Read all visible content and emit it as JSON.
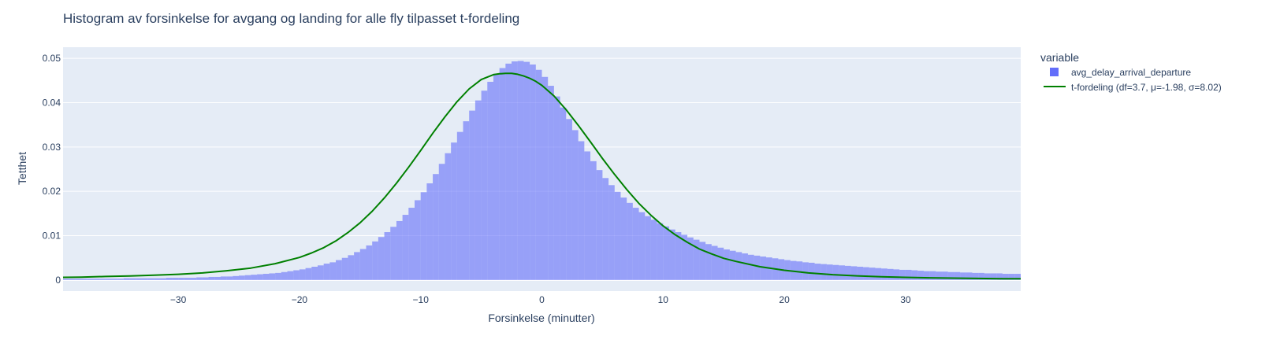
{
  "chart_data": {
    "type": "bar",
    "title": "Histogram av forsinkelse for avgang og landing for alle fly tilpasset t-fordeling",
    "xlabel": "Forsinkelse (minutter)",
    "ylabel": "Tetthet",
    "xlim": [
      -39.5,
      39.5
    ],
    "ylim": [
      -0.0025,
      0.0525
    ],
    "x_ticks": [
      -30,
      -20,
      -10,
      0,
      10,
      20,
      30
    ],
    "x_tick_labels": [
      "−30",
      "−20",
      "−10",
      "0",
      "10",
      "20",
      "30"
    ],
    "y_ticks": [
      0,
      0.01,
      0.02,
      0.03,
      0.04,
      0.05
    ],
    "y_tick_labels": [
      "0",
      "0.01",
      "0.02",
      "0.03",
      "0.04",
      "0.05"
    ],
    "grid": true,
    "legend": {
      "title": "variable",
      "position": "right",
      "entries": [
        {
          "label": "avg_delay_arrival_departure",
          "symbol": "square",
          "color": "#636efa"
        },
        {
          "label": "t-fordeling (df=3.7, μ=-1.98, σ=8.02)",
          "symbol": "line",
          "color": "#008000"
        }
      ]
    },
    "colors": {
      "plot_background": "#e5ecf6",
      "histogram": "#636efa",
      "t_curve": "#008000",
      "text": "#2a3f5f"
    },
    "histogram": {
      "name": "avg_delay_arrival_departure",
      "bin_width": 0.5,
      "opacity": 0.6,
      "bin_starts": [
        -39.5,
        -39,
        -38.5,
        -38,
        -37.5,
        -37,
        -36.5,
        -36,
        -35.5,
        -35,
        -34.5,
        -34,
        -33.5,
        -33,
        -32.5,
        -32,
        -31.5,
        -31,
        -30.5,
        -30,
        -29.5,
        -29,
        -28.5,
        -28,
        -27.5,
        -27,
        -26.5,
        -26,
        -25.5,
        -25,
        -24.5,
        -24,
        -23.5,
        -23,
        -22.5,
        -22,
        -21.5,
        -21,
        -20.5,
        -20,
        -19.5,
        -19,
        -18.5,
        -18,
        -17.5,
        -17,
        -16.5,
        -16,
        -15.5,
        -15,
        -14.5,
        -14,
        -13.5,
        -13,
        -12.5,
        -12,
        -11.5,
        -11,
        -10.5,
        -10,
        -9.5,
        -9,
        -8.5,
        -8,
        -7.5,
        -7,
        -6.5,
        -6,
        -5.5,
        -5,
        -4.5,
        -4,
        -3.5,
        -3,
        -2.5,
        -2,
        -1.5,
        -1,
        -0.5,
        0,
        0.5,
        1,
        1.5,
        2,
        2.5,
        3,
        3.5,
        4,
        4.5,
        5,
        5.5,
        6,
        6.5,
        7,
        7.5,
        8,
        8.5,
        9,
        9.5,
        10,
        10.5,
        11,
        11.5,
        12,
        12.5,
        13,
        13.5,
        14,
        14.5,
        15,
        15.5,
        16,
        16.5,
        17,
        17.5,
        18,
        18.5,
        19,
        19.5,
        20,
        20.5,
        21,
        21.5,
        22,
        22.5,
        23,
        23.5,
        24,
        24.5,
        25,
        25.5,
        26,
        26.5,
        27,
        27.5,
        28,
        28.5,
        29,
        29.5,
        30,
        30.5,
        31,
        31.5,
        32,
        32.5,
        33,
        33.5,
        34,
        34.5,
        35,
        35.5,
        36,
        36.5,
        37,
        37.5,
        38,
        38.5,
        39
      ],
      "densities": [
        0.0003,
        0.0003,
        0.0003,
        0.0003,
        0.0003,
        0.0003,
        0.0003,
        0.0003,
        0.0003,
        0.0003,
        0.0004,
        0.0004,
        0.0004,
        0.0004,
        0.0004,
        0.0004,
        0.0004,
        0.0005,
        0.0005,
        0.0005,
        0.0005,
        0.0005,
        0.0006,
        0.0006,
        0.0007,
        0.0007,
        0.0008,
        0.0008,
        0.0009,
        0.001,
        0.0011,
        0.0012,
        0.0013,
        0.0014,
        0.0015,
        0.0016,
        0.0018,
        0.002,
        0.0022,
        0.0024,
        0.0027,
        0.003,
        0.0033,
        0.0037,
        0.004,
        0.0045,
        0.005,
        0.0056,
        0.0063,
        0.007,
        0.0078,
        0.0087,
        0.0097,
        0.0108,
        0.012,
        0.0133,
        0.0147,
        0.0163,
        0.018,
        0.0198,
        0.0218,
        0.0239,
        0.0262,
        0.0286,
        0.031,
        0.0334,
        0.0358,
        0.0382,
        0.0405,
        0.0427,
        0.0447,
        0.0465,
        0.0478,
        0.0488,
        0.0493,
        0.0494,
        0.0492,
        0.0486,
        0.0474,
        0.0458,
        0.0438,
        0.0414,
        0.0389,
        0.0363,
        0.0338,
        0.0313,
        0.029,
        0.0268,
        0.0248,
        0.023,
        0.0214,
        0.0199,
        0.0186,
        0.0174,
        0.0163,
        0.0153,
        0.0144,
        0.0136,
        0.0128,
        0.0121,
        0.0114,
        0.0108,
        0.0102,
        0.0096,
        0.0091,
        0.0086,
        0.0081,
        0.0077,
        0.0073,
        0.0069,
        0.0066,
        0.0063,
        0.006,
        0.0057,
        0.0055,
        0.0053,
        0.0051,
        0.0049,
        0.0047,
        0.0045,
        0.0043,
        0.0042,
        0.004,
        0.0039,
        0.0037,
        0.0036,
        0.0035,
        0.0034,
        0.0033,
        0.0032,
        0.0031,
        0.003,
        0.0029,
        0.0028,
        0.0027,
        0.0026,
        0.0025,
        0.0024,
        0.0023,
        0.0023,
        0.0022,
        0.0021,
        0.002,
        0.002,
        0.0019,
        0.0019,
        0.0018,
        0.0018,
        0.0017,
        0.0017,
        0.0016,
        0.0016,
        0.0015,
        0.0015,
        0.0015,
        0.0014,
        0.0014,
        0.0014,
        0.0013,
        0.0013,
        0.0013,
        0.0012
      ]
    },
    "t_curve": {
      "name": "t-fordeling (df=3.7, μ=-1.98, σ=8.02)",
      "x": [
        -39.5,
        -38,
        -36,
        -34,
        -32,
        -30,
        -28,
        -26,
        -24,
        -22,
        -20,
        -19,
        -18,
        -17,
        -16,
        -15,
        -14,
        -13,
        -12,
        -11,
        -10,
        -9,
        -8,
        -7,
        -6,
        -5,
        -4,
        -3.5,
        -3,
        -2.5,
        -2,
        -1.5,
        -1,
        -0.5,
        0,
        1,
        2,
        3,
        4,
        5,
        6,
        7,
        8,
        9,
        10,
        11,
        12,
        13,
        14,
        15,
        16,
        18,
        20,
        22,
        24,
        26,
        28,
        30,
        32,
        34,
        36,
        38,
        39.5
      ],
      "y": [
        0.0006,
        0.00065,
        0.0008,
        0.0009,
        0.0011,
        0.0013,
        0.0016,
        0.0021,
        0.0027,
        0.0037,
        0.0051,
        0.0061,
        0.0073,
        0.0088,
        0.0107,
        0.0129,
        0.0155,
        0.0185,
        0.0218,
        0.0254,
        0.0292,
        0.0331,
        0.0368,
        0.0402,
        0.0431,
        0.0452,
        0.0463,
        0.0465,
        0.0466,
        0.0466,
        0.0464,
        0.046,
        0.0455,
        0.0448,
        0.0439,
        0.0415,
        0.0384,
        0.0349,
        0.0312,
        0.0274,
        0.0238,
        0.0204,
        0.0173,
        0.0146,
        0.0122,
        0.0102,
        0.0085,
        0.007,
        0.0059,
        0.0049,
        0.0042,
        0.003,
        0.0022,
        0.0016,
        0.0012,
        0.00095,
        0.00075,
        0.0006,
        0.0005,
        0.00042,
        0.00035,
        0.0003,
        0.00028
      ]
    }
  }
}
